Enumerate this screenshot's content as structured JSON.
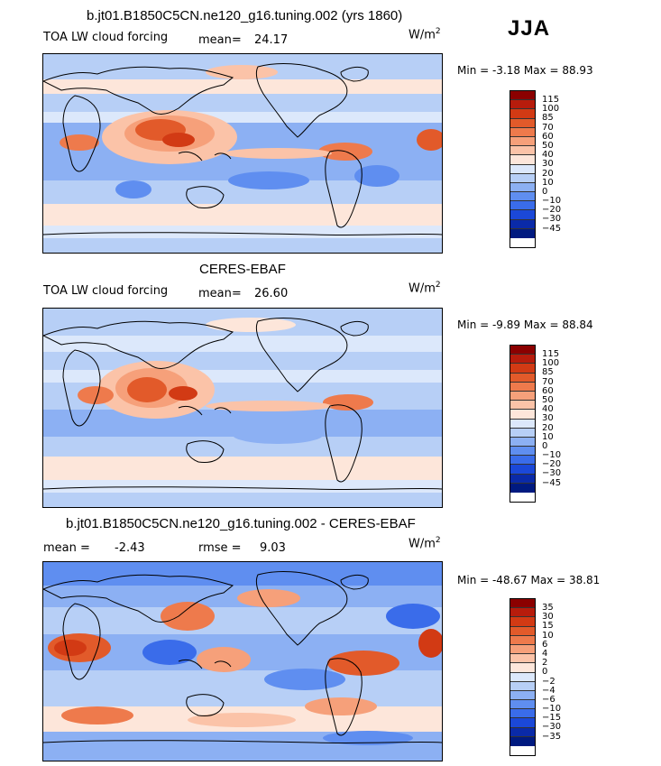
{
  "season": "JJA",
  "panels": [
    {
      "title": "b.jt01.B1850C5CN.ne120_g16.tuning.002 (yrs 1860)",
      "left_label": "TOA LW cloud forcing",
      "stat_label": "mean=",
      "stat_value": "24.17",
      "stat2_label": "",
      "stat2_value": "",
      "units_base": "W/m",
      "units_sup": "2",
      "min_max": "Min =   -3.18 Max =   88.93"
    },
    {
      "title": "CERES-EBAF",
      "left_label": "TOA LW cloud forcing",
      "stat_label": "mean=",
      "stat_value": "26.60",
      "stat2_label": "",
      "stat2_value": "",
      "units_base": "W/m",
      "units_sup": "2",
      "min_max": "Min =   -9.89 Max =   88.84"
    },
    {
      "title": "b.jt01.B1850C5CN.ne120_g16.tuning.002 - CERES-EBAF",
      "left_label": "mean =",
      "stat_label": "-2.43",
      "stat_value": "",
      "stat2_label": "rmse =",
      "stat2_value": "9.03",
      "units_base": "W/m",
      "units_sup": "2",
      "min_max": "Min =  -48.67 Max =   38.81"
    }
  ],
  "colorbars": [
    {
      "labels": [
        "115",
        "100",
        "85",
        "70",
        "60",
        "50",
        "40",
        "30",
        "20",
        "10",
        "0",
        "−10",
        "−20",
        "−30",
        "−45"
      ],
      "colors": [
        "#8b0000",
        "#b71c0c",
        "#d23a14",
        "#e25a2a",
        "#ee7a4c",
        "#f6a07a",
        "#fbc3a8",
        "#fde6da",
        "#dce8fb",
        "#b7cff6",
        "#8cb0f3",
        "#5f8ef0",
        "#3a6cea",
        "#1b48d8",
        "#0a2aa8",
        "#001a80"
      ]
    },
    {
      "labels": [
        "115",
        "100",
        "85",
        "70",
        "60",
        "50",
        "40",
        "30",
        "20",
        "10",
        "0",
        "−10",
        "−20",
        "−30",
        "−45"
      ],
      "colors": [
        "#8b0000",
        "#b71c0c",
        "#d23a14",
        "#e25a2a",
        "#ee7a4c",
        "#f6a07a",
        "#fbc3a8",
        "#fde6da",
        "#dce8fb",
        "#b7cff6",
        "#8cb0f3",
        "#5f8ef0",
        "#3a6cea",
        "#1b48d8",
        "#0a2aa8",
        "#001a80"
      ]
    },
    {
      "labels": [
        "35",
        "30",
        "15",
        "10",
        "6",
        "4",
        "2",
        "0",
        "−2",
        "−4",
        "−6",
        "−10",
        "−15",
        "−30",
        "−35"
      ],
      "colors": [
        "#8b0000",
        "#b71c0c",
        "#d23a14",
        "#e25a2a",
        "#ee7a4c",
        "#f6a07a",
        "#fbc3a8",
        "#fde6da",
        "#dce8fb",
        "#b7cff6",
        "#8cb0f3",
        "#5f8ef0",
        "#3a6cea",
        "#1b48d8",
        "#0a2aa8",
        "#001a80"
      ]
    }
  ],
  "chart_data": [
    {
      "type": "heatmap",
      "title": "b.jt01.B1850C5CN.ne120_g16.tuning.002 (yrs 1860)",
      "variable": "TOA LW cloud forcing",
      "units": "W/m2",
      "mean": 24.17,
      "min": -3.18,
      "max": 88.93,
      "levels": [
        -45,
        -30,
        -20,
        -10,
        0,
        10,
        20,
        30,
        40,
        50,
        60,
        70,
        85,
        100,
        115
      ]
    },
    {
      "type": "heatmap",
      "title": "CERES-EBAF",
      "variable": "TOA LW cloud forcing",
      "units": "W/m2",
      "mean": 26.6,
      "min": -9.89,
      "max": 88.84,
      "levels": [
        -45,
        -30,
        -20,
        -10,
        0,
        10,
        20,
        30,
        40,
        50,
        60,
        70,
        85,
        100,
        115
      ]
    },
    {
      "type": "heatmap",
      "title": "b.jt01.B1850C5CN.ne120_g16.tuning.002 - CERES-EBAF",
      "units": "W/m2",
      "mean": -2.43,
      "rmse": 9.03,
      "min": -48.67,
      "max": 38.81,
      "levels": [
        -35,
        -30,
        -15,
        -10,
        -6,
        -4,
        -2,
        0,
        2,
        4,
        6,
        10,
        15,
        30,
        35
      ]
    }
  ]
}
